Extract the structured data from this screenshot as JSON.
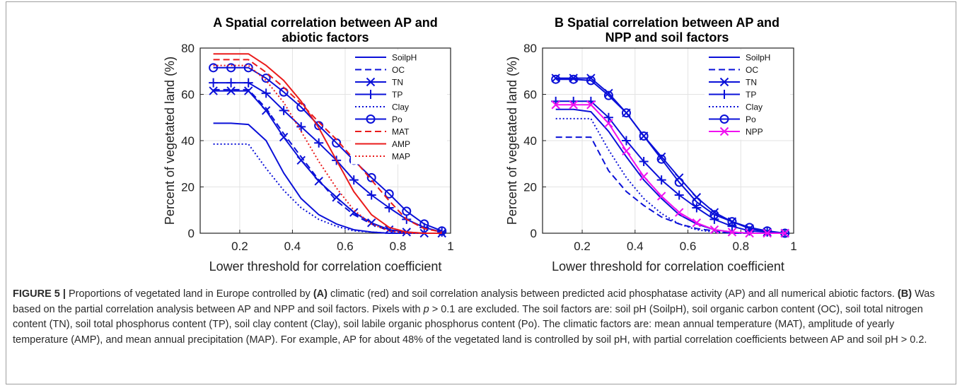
{
  "caption": {
    "figure_label": "FIGURE 5 |",
    "seg1": " Proportions of vegetated land in Europe controlled by ",
    "a_label": "(A)",
    "seg2": " climatic (red) and soil correlation analysis between predicted acid phosphatase activity (AP) and all numerical abiotic factors. ",
    "b_label": "(B)",
    "seg3a": " Was based on the partial correlation analysis between AP and NPP and soil factors. Pixels with ",
    "p_symbol": "p",
    "seg3b": " > 0.1 are excluded. The soil factors are: soil pH (SoilpH), soil organic carbon content (OC), soil total nitrogen content (TN), soil total phosphorus content (TP), soil clay content (Clay), soil labile organic phosphorus content (Po). The climatic factors are: mean annual temperature (MAT), amplitude of yearly temperature (AMP), and mean annual precipitation (MAP). For example, AP for about 48% of the vegetated land is controlled by soil pH, with partial correlation coefficients between AP and soil pH > 0.2."
  },
  "colors": {
    "blue": "#0a10d8",
    "red": "#ea1b1b",
    "magenta": "#f010f0"
  },
  "chart_data": [
    {
      "type": "line",
      "title_lines": [
        "A Spatial correlation between AP and",
        "abiotic factors"
      ],
      "xlabel": "Lower threshold for correlation coefficient",
      "ylabel": "Percent of vegetated land (%)",
      "xlim": [
        0.05,
        1.0
      ],
      "ylim": [
        0,
        80
      ],
      "xticks": [
        0.2,
        0.4,
        0.6,
        0.8,
        1
      ],
      "xtick_labels": [
        "0.2",
        "0.4",
        "0.6",
        "0.8",
        "1"
      ],
      "yticks": [
        0,
        20,
        40,
        60,
        80
      ],
      "ytick_labels": [
        "0",
        "20",
        "40",
        "60",
        "80"
      ],
      "grid": true,
      "legend_position": "top-right",
      "x": [
        0.1,
        0.167,
        0.233,
        0.3,
        0.367,
        0.433,
        0.5,
        0.567,
        0.633,
        0.7,
        0.767,
        0.833,
        0.9,
        0.967
      ],
      "series": [
        {
          "name": "SoilpH",
          "color": "blue",
          "dash": "solid",
          "marker": "none",
          "values": [
            47.5,
            47.5,
            47,
            40,
            26,
            15,
            8,
            4,
            1.5,
            0.5,
            0,
            0,
            0,
            0
          ]
        },
        {
          "name": "OC",
          "color": "blue",
          "dash": "dashed",
          "marker": "none",
          "values": [
            62,
            62,
            62,
            54,
            43,
            33,
            23,
            14,
            8,
            4,
            1,
            0,
            0,
            0
          ]
        },
        {
          "name": "TN",
          "color": "blue",
          "dash": "solid",
          "marker": "x",
          "values": [
            61.5,
            61.5,
            61.5,
            53,
            41.5,
            31.5,
            22.5,
            15.5,
            9,
            4.5,
            1.5,
            0.5,
            0,
            0
          ]
        },
        {
          "name": "TP",
          "color": "blue",
          "dash": "solid",
          "marker": "plus",
          "values": [
            65,
            65,
            65,
            60.5,
            53,
            46,
            39,
            31.5,
            23,
            16.5,
            11,
            6,
            2.5,
            0.5
          ]
        },
        {
          "name": "Clay",
          "color": "blue",
          "dash": "dotted",
          "marker": "none",
          "values": [
            38.5,
            38.5,
            38.5,
            28,
            18.5,
            11,
            6,
            3,
            1,
            0.5,
            0,
            0,
            0,
            0
          ]
        },
        {
          "name": "Po",
          "color": "blue",
          "dash": "solid",
          "marker": "circle",
          "values": [
            71.5,
            71.5,
            71.5,
            67,
            61,
            54.5,
            46.5,
            39,
            31.5,
            24,
            17,
            9.5,
            4,
            1
          ]
        },
        {
          "name": "MAT",
          "color": "red",
          "dash": "dashed",
          "marker": "none",
          "values": [
            75,
            75,
            75,
            69.5,
            63,
            56,
            48,
            40.5,
            32,
            23,
            14,
            6,
            2,
            0.5
          ]
        },
        {
          "name": "AMP",
          "color": "red",
          "dash": "solid",
          "marker": "none",
          "values": [
            77.5,
            77.5,
            77.5,
            72.5,
            66,
            57,
            45.5,
            31.5,
            18,
            8,
            2.5,
            0.5,
            0,
            0
          ]
        },
        {
          "name": "MAP",
          "color": "red",
          "dash": "dotted",
          "marker": "none",
          "values": [
            72.5,
            72.5,
            72.5,
            66,
            56.5,
            44,
            31,
            19.5,
            10,
            4,
            1,
            0,
            0,
            0
          ]
        }
      ]
    },
    {
      "type": "line",
      "title_lines": [
        "B Spatial correlation between AP and",
        "NPP and soil factors"
      ],
      "xlabel": "Lower threshold for correlation coefficient",
      "ylabel": "Percent of vegetated land (%)",
      "xlim": [
        0.05,
        1.0
      ],
      "ylim": [
        0,
        80
      ],
      "xticks": [
        0.2,
        0.4,
        0.6,
        0.8,
        1
      ],
      "xtick_labels": [
        "0.2",
        "0.4",
        "0.6",
        "0.8",
        "1"
      ],
      "yticks": [
        0,
        20,
        40,
        60,
        80
      ],
      "ytick_labels": [
        "0",
        "20",
        "40",
        "60",
        "80"
      ],
      "grid": true,
      "legend_position": "top-right",
      "x": [
        0.1,
        0.167,
        0.233,
        0.3,
        0.367,
        0.433,
        0.5,
        0.567,
        0.633,
        0.7,
        0.767,
        0.833,
        0.9,
        0.967
      ],
      "series": [
        {
          "name": "SoilpH",
          "color": "blue",
          "dash": "solid",
          "marker": "none",
          "values": [
            53.5,
            53.5,
            52.5,
            44,
            33,
            23,
            15,
            8,
            4,
            1.5,
            0.5,
            0,
            0,
            0
          ]
        },
        {
          "name": "OC",
          "color": "blue",
          "dash": "dashed",
          "marker": "none",
          "values": [
            41.5,
            41.5,
            41.5,
            27,
            18,
            12,
            7,
            4,
            2,
            1,
            0,
            0,
            0,
            0
          ]
        },
        {
          "name": "TN",
          "color": "blue",
          "dash": "solid",
          "marker": "x",
          "values": [
            67,
            67,
            67,
            60.5,
            52,
            42,
            33,
            24,
            15.5,
            9,
            5,
            2,
            0.5,
            0
          ]
        },
        {
          "name": "TP",
          "color": "blue",
          "dash": "solid",
          "marker": "plus",
          "values": [
            57,
            57,
            57,
            50,
            40,
            31,
            23,
            16.5,
            11,
            6,
            3,
            1,
            0.5,
            0
          ]
        },
        {
          "name": "Clay",
          "color": "blue",
          "dash": "dotted",
          "marker": "none",
          "values": [
            49.5,
            49.5,
            49.5,
            36,
            24,
            15,
            8.5,
            4,
            1.5,
            0.5,
            0,
            0,
            0,
            0
          ]
        },
        {
          "name": "Po",
          "color": "blue",
          "dash": "solid",
          "marker": "circle",
          "values": [
            66.5,
            66.5,
            66,
            59.5,
            52,
            42,
            32,
            22,
            13.5,
            8,
            5,
            2.5,
            1,
            0
          ]
        },
        {
          "name": "NPP",
          "color": "magenta",
          "dash": "solid",
          "marker": "x",
          "values": [
            55.5,
            55.5,
            55.5,
            47.5,
            35.5,
            24.5,
            16,
            9,
            4.5,
            1.5,
            0.5,
            0,
            0,
            0
          ]
        }
      ]
    }
  ]
}
